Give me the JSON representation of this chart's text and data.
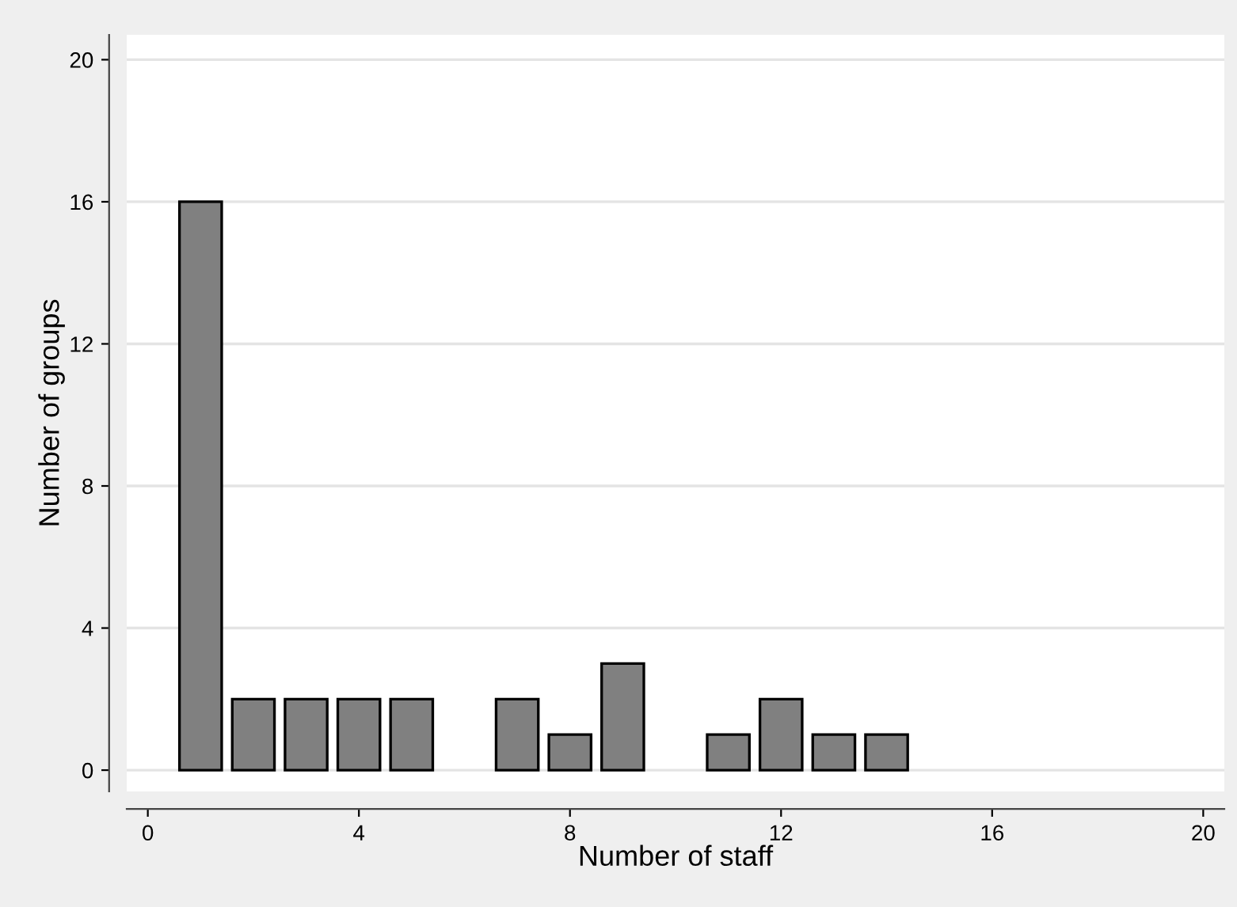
{
  "chart_data": {
    "type": "bar",
    "xlabel": "Number of staff",
    "ylabel": "Number of groups",
    "x": [
      1,
      2,
      3,
      4,
      5,
      7,
      8,
      9,
      11,
      12,
      13,
      14
    ],
    "values": [
      16,
      2,
      2,
      2,
      2,
      2,
      1,
      3,
      1,
      2,
      1,
      1
    ],
    "color": "#808080",
    "xlim": [
      -0.4,
      20.4
    ],
    "xticks": [
      0,
      4,
      8,
      12,
      16,
      20
    ],
    "ylim": [
      -0.6,
      20.7
    ],
    "yticks": [
      0,
      4,
      8,
      12,
      16,
      20
    ],
    "grid": "y",
    "legend": false
  }
}
